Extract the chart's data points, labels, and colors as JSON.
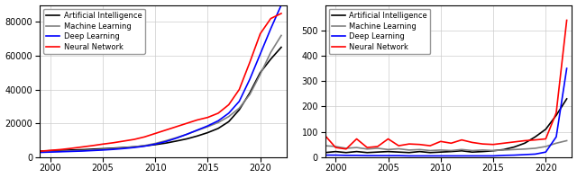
{
  "years": [
    1999,
    2000,
    2001,
    2002,
    2003,
    2004,
    2005,
    2006,
    2007,
    2008,
    2009,
    2010,
    2011,
    2012,
    2013,
    2014,
    2015,
    2016,
    2017,
    2018,
    2019,
    2020,
    2021,
    2022
  ],
  "left": {
    "AI": [
      3500,
      3800,
      4000,
      4200,
      4400,
      4700,
      5000,
      5300,
      5700,
      6100,
      6700,
      7400,
      8300,
      9500,
      10800,
      12500,
      14500,
      17000,
      21000,
      28000,
      38000,
      50000,
      58000,
      65000
    ],
    "ML": [
      3000,
      3300,
      3500,
      3700,
      3900,
      4200,
      4600,
      5000,
      5500,
      6100,
      6900,
      8100,
      9700,
      11500,
      13500,
      15800,
      18000,
      20500,
      24000,
      29000,
      37000,
      49000,
      62000,
      72000
    ],
    "DL": [
      2800,
      3000,
      3200,
      3400,
      3600,
      3900,
      4200,
      4600,
      5100,
      5700,
      6500,
      7700,
      9200,
      11200,
      13500,
      16000,
      18500,
      21500,
      26000,
      33000,
      46000,
      61000,
      76000,
      90000
    ],
    "NN": [
      3500,
      4000,
      4500,
      5200,
      6000,
      6800,
      7700,
      8500,
      9500,
      10500,
      12000,
      14000,
      16000,
      18000,
      20000,
      22000,
      23500,
      26000,
      31000,
      40000,
      56000,
      73000,
      82000,
      85000
    ]
  },
  "right": {
    "AI": [
      18,
      22,
      18,
      22,
      18,
      20,
      22,
      20,
      18,
      22,
      18,
      20,
      22,
      25,
      20,
      22,
      25,
      30,
      40,
      55,
      80,
      110,
      165,
      230
    ],
    "ML": [
      45,
      42,
      35,
      38,
      32,
      35,
      30,
      33,
      28,
      30,
      26,
      28,
      26,
      30,
      26,
      28,
      26,
      28,
      30,
      32,
      35,
      42,
      55,
      65
    ],
    "DL": [
      8,
      8,
      7,
      7,
      6,
      6,
      6,
      6,
      5,
      5,
      5,
      5,
      5,
      5,
      5,
      5,
      5,
      7,
      8,
      10,
      12,
      20,
      80,
      350
    ],
    "NN": [
      85,
      38,
      32,
      72,
      38,
      42,
      72,
      45,
      52,
      50,
      45,
      62,
      55,
      68,
      58,
      52,
      50,
      55,
      60,
      65,
      68,
      72,
      175,
      540
    ]
  },
  "colors": {
    "AI": "#000000",
    "ML": "#808080",
    "DL": "#0000ff",
    "NN": "#ff0000"
  },
  "labels": {
    "AI": "Artificial Intelligence",
    "ML": "Machine Learning",
    "DL": "Deep Learning",
    "NN": "Neural Network"
  },
  "left_ylim": [
    0,
    90000
  ],
  "right_ylim": [
    0,
    600
  ],
  "left_yticks": [
    0,
    20000,
    40000,
    60000,
    80000
  ],
  "right_yticks": [
    0,
    100,
    200,
    300,
    400,
    500
  ],
  "xticks": [
    2000,
    2005,
    2010,
    2015,
    2020
  ],
  "xlim": [
    1999,
    2022.5
  ],
  "linewidth": 1.2
}
